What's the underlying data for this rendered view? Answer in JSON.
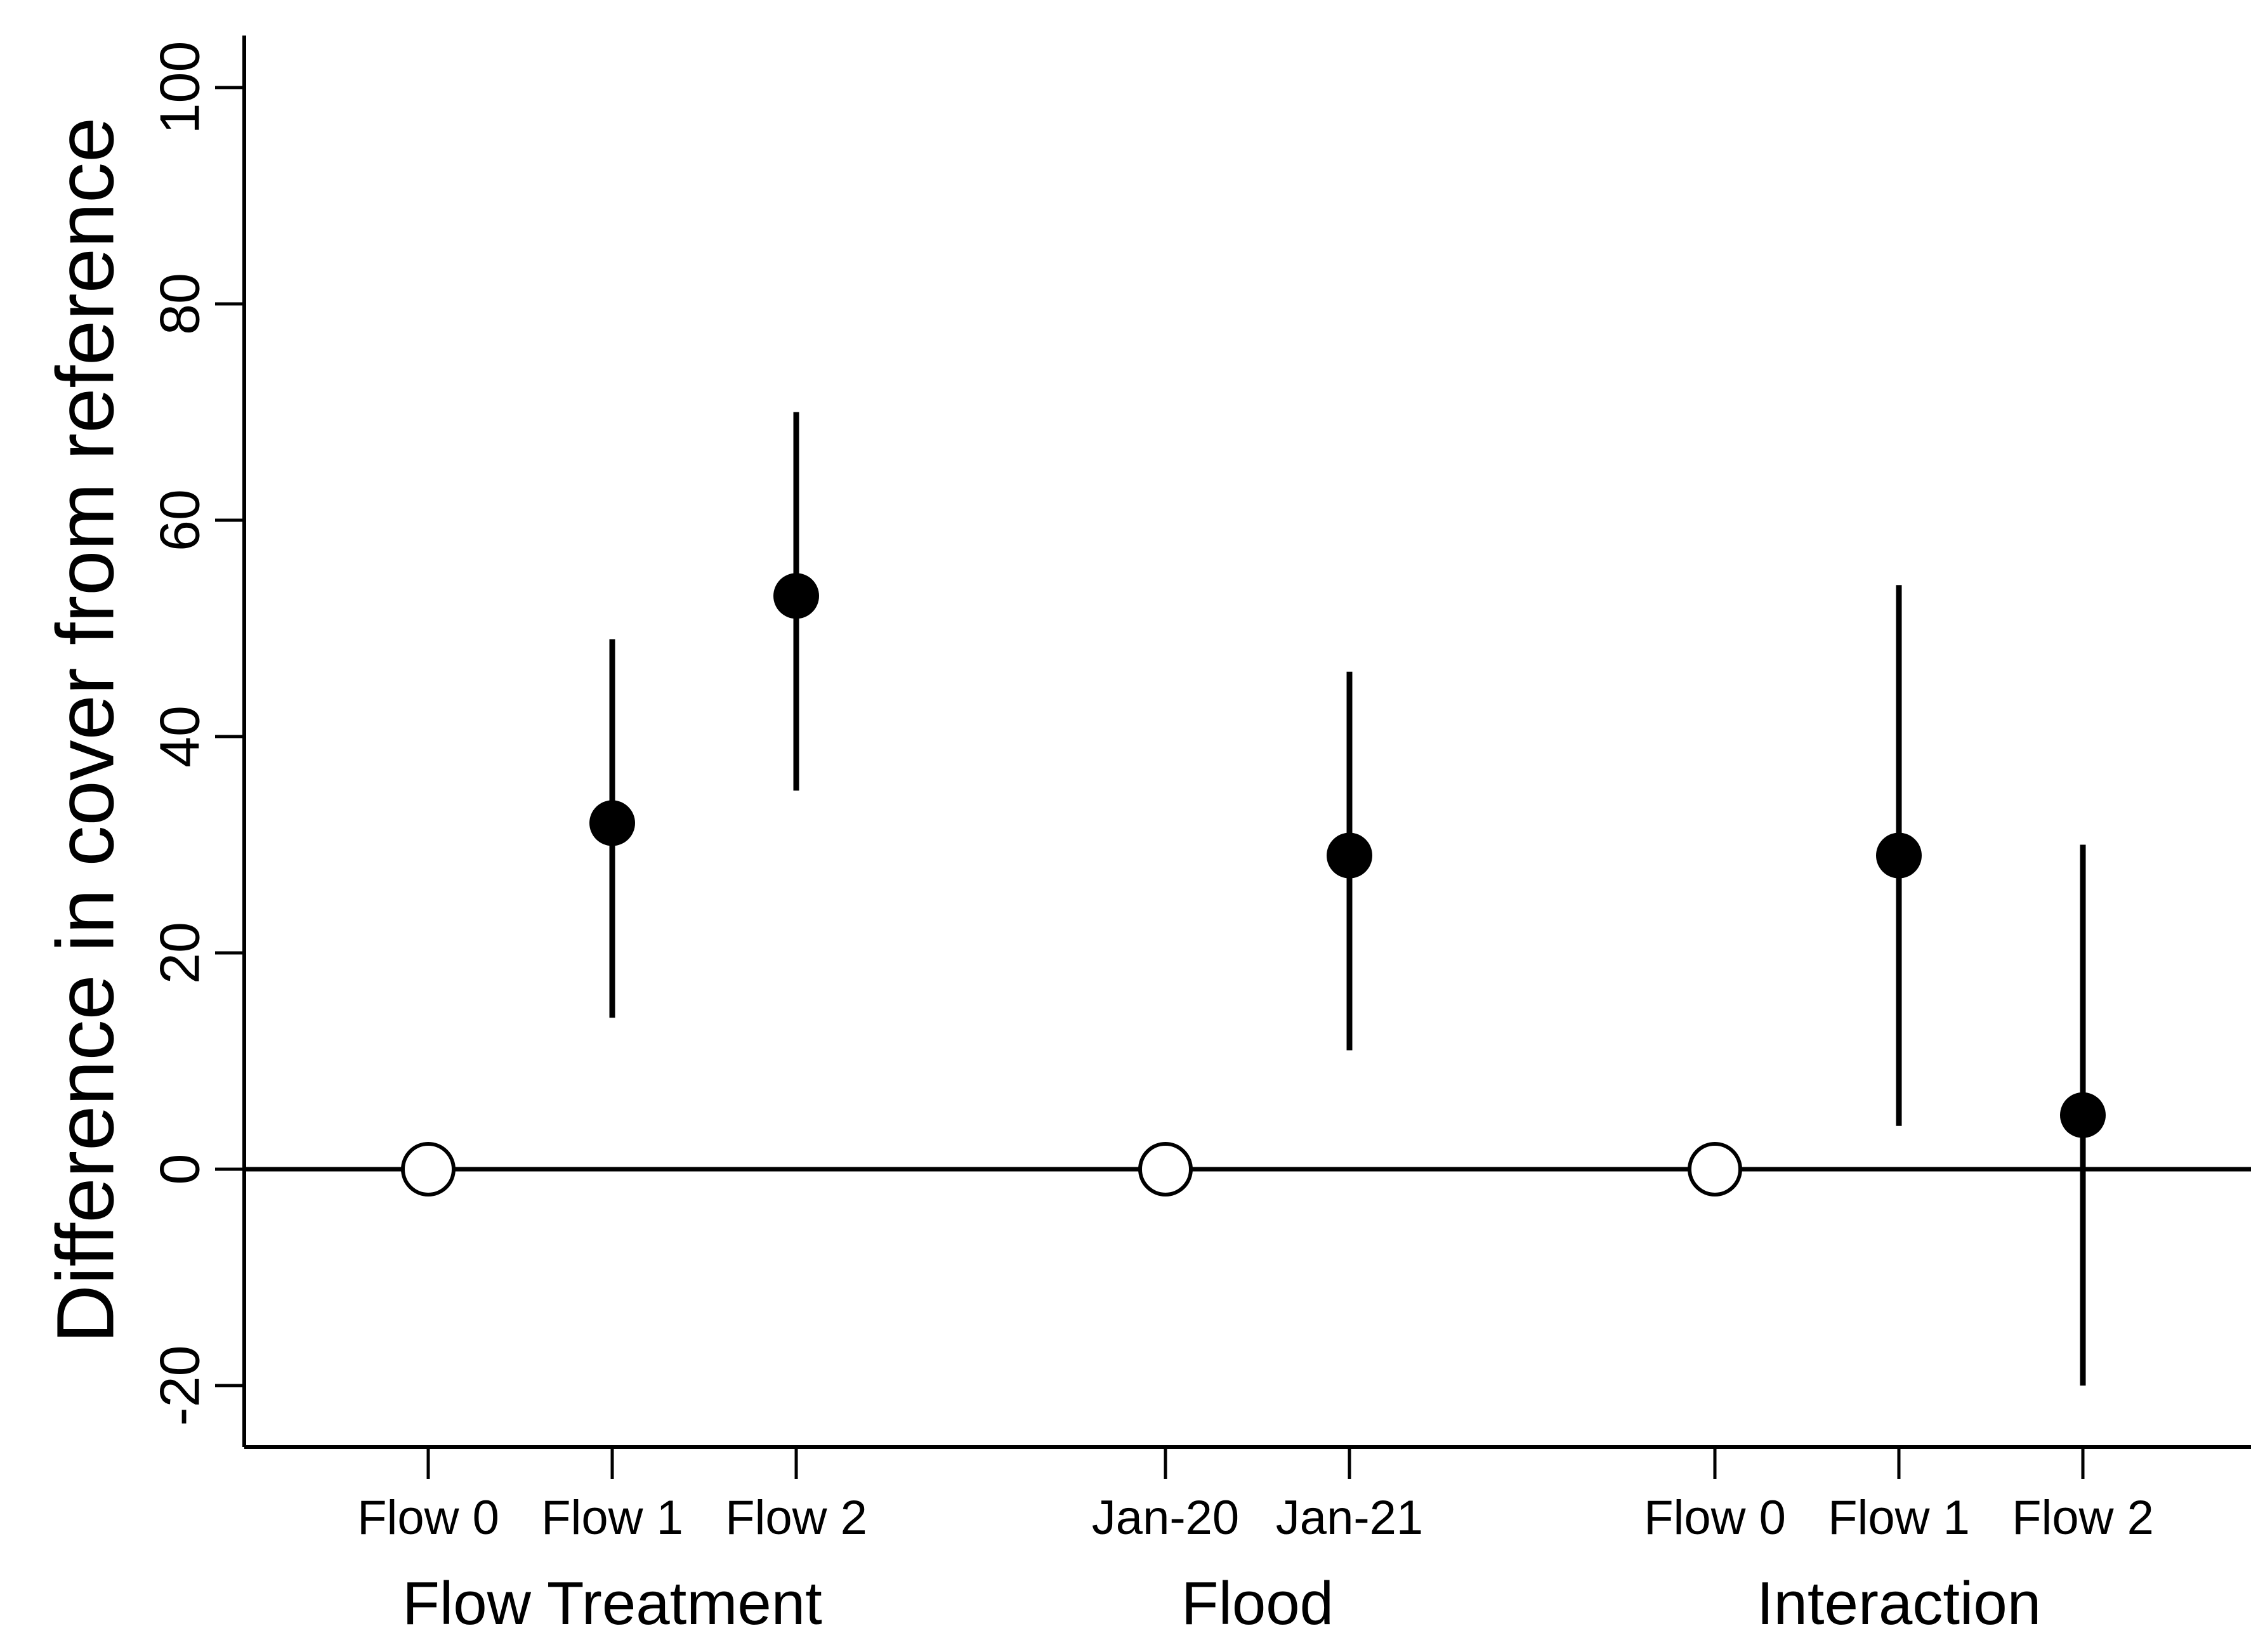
{
  "figure": {
    "background": "#ffffff",
    "ink": "#000000"
  },
  "chart_data": {
    "type": "scatter",
    "subtype": "point-estimates-with-error-bars",
    "title": "",
    "xlabel": "",
    "ylabel": "Difference in cover from reference",
    "ylim": [
      -26,
      104
    ],
    "y_ticks": [
      100,
      80,
      60,
      40,
      20,
      0,
      -20
    ],
    "y_tick_labels": [
      "100",
      "80",
      "60",
      "40",
      "20",
      "0",
      "-20"
    ],
    "grid": false,
    "legend": null,
    "zero_reference_line_y": 0,
    "groups": [
      {
        "label": "Flow Treatment",
        "points": [
          {
            "label": "Flow 0",
            "value": 0,
            "ci_low": null,
            "ci_high": null,
            "marker": "open"
          },
          {
            "label": "Flow 1",
            "value": 32,
            "ci_low": 14,
            "ci_high": 49,
            "marker": "filled"
          },
          {
            "label": "Flow 2",
            "value": 53,
            "ci_low": 35,
            "ci_high": 70,
            "marker": "filled"
          }
        ]
      },
      {
        "label": "Flood",
        "points": [
          {
            "label": "Jan-20",
            "value": 0,
            "ci_low": null,
            "ci_high": null,
            "marker": "open"
          },
          {
            "label": "Jan-21",
            "value": 29,
            "ci_low": 11,
            "ci_high": 46,
            "marker": "filled"
          }
        ]
      },
      {
        "label": "Interaction",
        "points": [
          {
            "label": "Flow 0",
            "value": 0,
            "ci_low": null,
            "ci_high": null,
            "marker": "open"
          },
          {
            "label": "Flow 1",
            "value": 29,
            "ci_low": 4,
            "ci_high": 54,
            "marker": "filled"
          },
          {
            "label": "Flow 2",
            "value": 5,
            "ci_low": -20,
            "ci_high": 30,
            "marker": "filled"
          }
        ]
      }
    ]
  }
}
